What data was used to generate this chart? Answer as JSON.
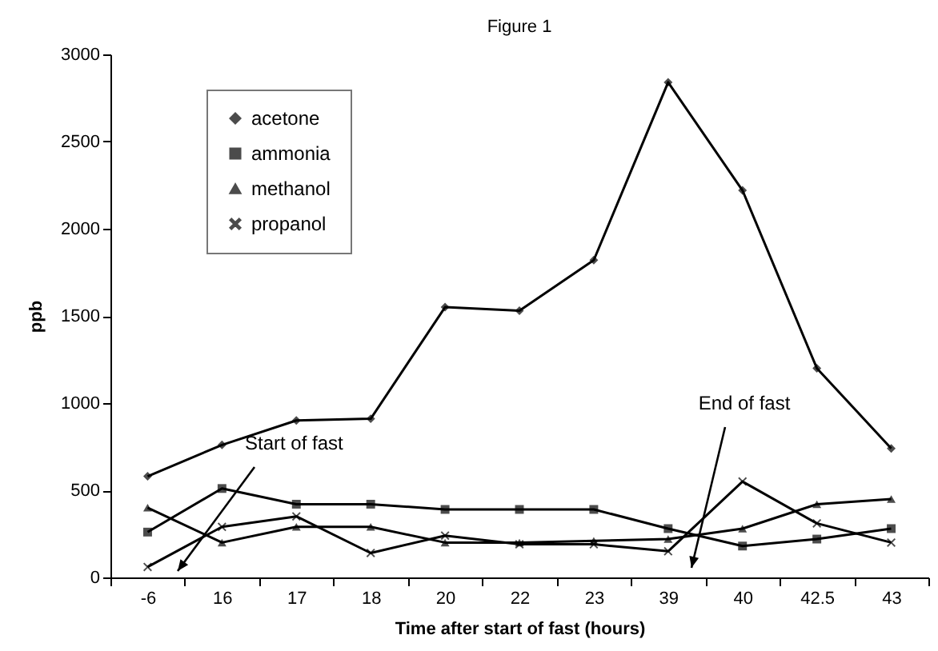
{
  "chart_data": {
    "type": "line",
    "title": "Figure 1",
    "xlabel": "Time after start of fast (hours)",
    "ylabel": "ppb",
    "categories": [
      "-6",
      "16",
      "17",
      "18",
      "20",
      "22",
      "23",
      "39",
      "40",
      "42.5",
      "43"
    ],
    "series": [
      {
        "name": "acetone",
        "color": "#000000",
        "marker": "diamond",
        "values": [
          580,
          760,
          900,
          910,
          1550,
          1530,
          1820,
          2840,
          2220,
          1200,
          740
        ]
      },
      {
        "name": "ammonia",
        "color": "#000000",
        "marker": "square",
        "values": [
          260,
          510,
          420,
          420,
          390,
          390,
          390,
          280,
          180,
          220,
          280
        ]
      },
      {
        "name": "methanol",
        "color": "#000000",
        "marker": "triangle",
        "values": [
          400,
          200,
          290,
          290,
          200,
          200,
          210,
          220,
          280,
          420,
          450
        ]
      },
      {
        "name": "propanol",
        "color": "#000000",
        "marker": "cross",
        "values": [
          60,
          290,
          350,
          140,
          240,
          190,
          190,
          150,
          550,
          310,
          200
        ]
      }
    ],
    "ylim": [
      0,
      3000
    ],
    "yticks": [
      0,
      500,
      1000,
      1500,
      2000,
      2500,
      3000
    ],
    "grid": false,
    "legend": "top left",
    "line_style": "solid",
    "annotations": [
      "Start of fast",
      "End of fast"
    ]
  }
}
